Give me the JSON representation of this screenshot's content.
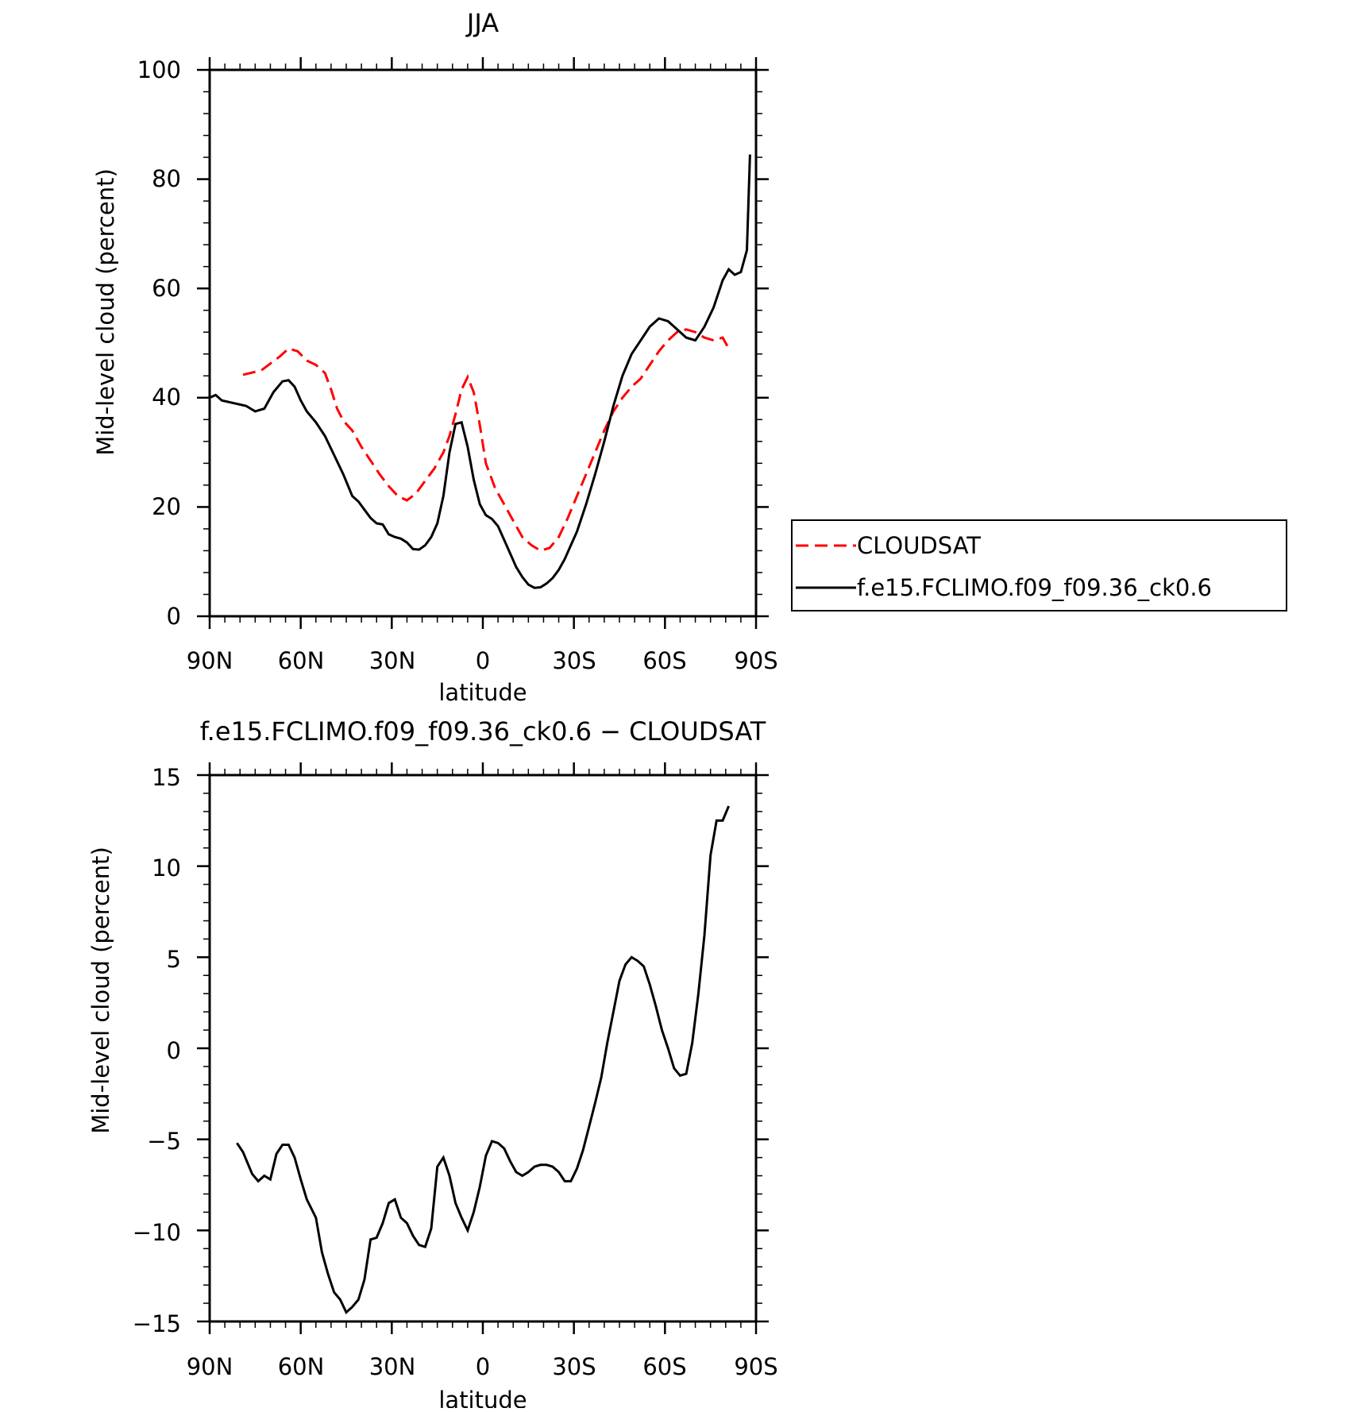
{
  "chart_data": [
    {
      "type": "line",
      "title": "JJA",
      "xlabel": "latitude",
      "ylabel": "Mid-level cloud (percent)",
      "x_ticks": [
        "90N",
        "60N",
        "30N",
        "0",
        "30S",
        "60S",
        "90S"
      ],
      "y_ticks": [
        "0",
        "20",
        "40",
        "60",
        "80",
        "100"
      ],
      "xlim": [
        90,
        -90
      ],
      "ylim": [
        0,
        100
      ],
      "legend_position": "right",
      "series": [
        {
          "name": "CLOUDSAT",
          "color": "#ff0000",
          "style": "dashed",
          "x": [
            79,
            73,
            67,
            64,
            61,
            58,
            55,
            52,
            50,
            48,
            46,
            43,
            40,
            37,
            34,
            31,
            28,
            25,
            22,
            19,
            16,
            13,
            11,
            9,
            7,
            5,
            3,
            1,
            -1,
            -4,
            -7,
            -10,
            -13,
            -16,
            -19,
            -22,
            -25,
            -28,
            -31,
            -34,
            -37,
            -40,
            -43,
            -46,
            -49,
            -52,
            -55,
            -58,
            -61,
            -64,
            -67,
            -70,
            -73,
            -76,
            -79,
            -81
          ],
          "y": [
            44.2,
            45,
            47.5,
            49,
            48.5,
            46.8,
            46,
            44.5,
            41.5,
            38,
            35.8,
            34,
            31,
            28.5,
            26,
            23.8,
            22,
            21.2,
            22.5,
            24.8,
            27,
            30,
            33,
            37,
            41.5,
            43.8,
            41,
            35,
            28,
            23.5,
            20.5,
            17.5,
            14.5,
            13,
            12,
            12.5,
            14.5,
            18,
            22,
            26,
            30,
            34,
            37.5,
            40,
            42,
            43.5,
            46,
            48.5,
            50.5,
            52,
            52.5,
            52,
            51,
            50.5,
            51,
            49
          ]
        },
        {
          "name": "f.e15.FCLIMO.f09_f09.36_ck0.6",
          "color": "#000000",
          "style": "solid",
          "x": [
            90,
            88,
            86,
            82,
            78,
            75,
            72,
            69,
            66,
            64,
            62,
            60,
            58,
            55,
            52,
            49,
            46,
            43,
            41,
            39,
            37,
            35,
            33,
            31,
            29,
            27,
            25,
            23,
            21,
            19,
            17,
            15,
            13,
            11,
            9,
            7,
            5,
            3,
            1,
            -1,
            -3,
            -5,
            -7,
            -9,
            -11,
            -13,
            -15,
            -17,
            -19,
            -21,
            -23,
            -25,
            -27,
            -29,
            -31,
            -34,
            -37,
            -40,
            -43,
            -46,
            -49,
            -52,
            -55,
            -58,
            -61,
            -64,
            -67,
            -70,
            -73,
            -76,
            -79,
            -81,
            -83,
            -85,
            -87,
            -88
          ],
          "y": [
            40,
            40.5,
            39.5,
            39,
            38.5,
            37.5,
            38,
            41,
            43,
            43.2,
            42,
            39.5,
            37.5,
            35.5,
            33,
            29.5,
            26,
            22,
            21,
            19.5,
            18,
            17,
            16.8,
            15,
            14.5,
            14.2,
            13.5,
            12.3,
            12.2,
            13,
            14.5,
            17,
            22,
            30,
            35.2,
            35.5,
            31,
            25,
            20.5,
            18.5,
            17.8,
            16.5,
            14,
            11.5,
            9,
            7.2,
            5.8,
            5.2,
            5.3,
            6,
            7,
            8.5,
            10.5,
            13,
            15.5,
            20.5,
            26,
            32,
            38.5,
            44,
            48,
            50.5,
            53,
            54.5,
            54,
            52.5,
            51,
            50.5,
            53,
            56.5,
            61.5,
            63.5,
            62.5,
            63,
            67,
            84.5
          ]
        }
      ]
    },
    {
      "type": "line",
      "title": "f.e15.FCLIMO.f09_f09.36_ck0.6 − CLOUDSAT",
      "xlabel": "latitude",
      "ylabel": "Mid-level cloud (percent)",
      "x_ticks": [
        "90N",
        "60N",
        "30N",
        "0",
        "30S",
        "60S",
        "90S"
      ],
      "y_ticks": [
        "−15",
        "−10",
        "−5",
        "0",
        "5",
        "10",
        "15"
      ],
      "xlim": [
        90,
        -90
      ],
      "ylim": [
        -15,
        15
      ],
      "series": [
        {
          "color": "#000000",
          "style": "solid",
          "x": [
            81,
            79,
            76,
            74,
            72,
            70,
            68,
            66,
            64,
            62,
            60,
            58,
            55,
            53,
            51,
            49,
            47,
            45,
            43,
            41,
            39,
            37,
            35,
            33,
            31,
            29,
            27,
            25,
            23,
            21,
            19,
            17,
            15,
            13,
            11,
            9,
            7,
            5,
            3,
            1,
            -1,
            -3,
            -5,
            -7,
            -9,
            -11,
            -13,
            -15,
            -17,
            -19,
            -21,
            -23,
            -25,
            -27,
            -29,
            -31,
            -33,
            -35,
            -37,
            -39,
            -41,
            -43,
            -45,
            -47,
            -49,
            -51,
            -53,
            -55,
            -57,
            -59,
            -61,
            -63,
            -65,
            -67,
            -69,
            -71,
            -73,
            -75,
            -77,
            -79,
            -81
          ],
          "y": [
            -5.2,
            -5.7,
            -6.9,
            -7.3,
            -7,
            -7.2,
            -5.8,
            -5.3,
            -5.3,
            -6,
            -7.2,
            -8.3,
            -9.3,
            -11.2,
            -12.4,
            -13.4,
            -13.8,
            -14.5,
            -14.2,
            -13.8,
            -12.7,
            -10.5,
            -10.4,
            -9.6,
            -8.5,
            -8.3,
            -9.3,
            -9.6,
            -10.3,
            -10.8,
            -10.9,
            -9.9,
            -6.5,
            -6,
            -7,
            -8.5,
            -9.3,
            -10,
            -9,
            -7.6,
            -5.9,
            -5.1,
            -5.2,
            -5.5,
            -6.2,
            -6.8,
            -7,
            -6.8,
            -6.5,
            -6.4,
            -6.4,
            -6.5,
            -6.8,
            -7.3,
            -7.3,
            -6.6,
            -5.6,
            -4.3,
            -3,
            -1.6,
            0.3,
            2,
            3.7,
            4.6,
            5,
            4.8,
            4.5,
            3.5,
            2.3,
            1,
            0,
            -1.1,
            -1.5,
            -1.4,
            0.3,
            3,
            6.2,
            10.6,
            12.5,
            12.5,
            13.3
          ]
        }
      ]
    }
  ]
}
